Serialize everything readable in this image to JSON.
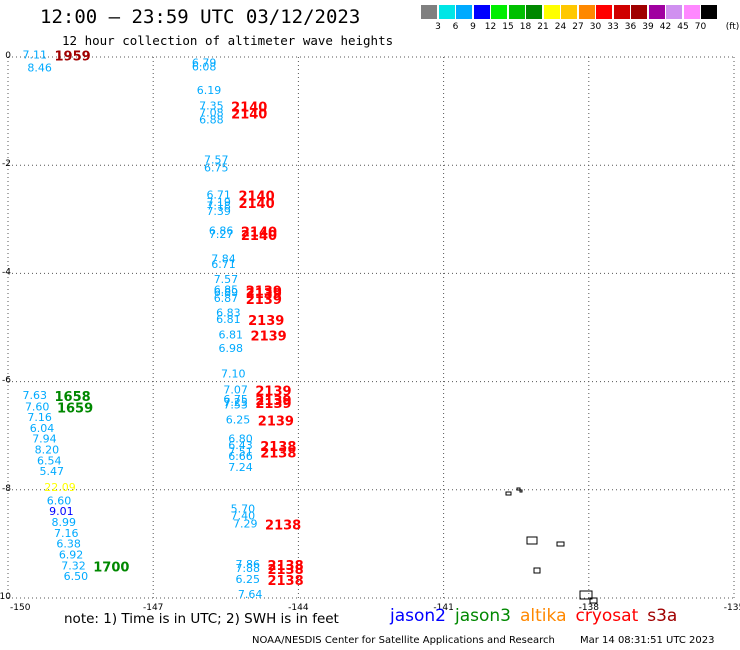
{
  "header": {
    "title": "12:00 — 23:59 UTC 03/12/2023",
    "subtitle": "12 hour collection of altimeter wave heights"
  },
  "legend": {
    "unit": "(ft)",
    "items": [
      {
        "label": "3",
        "color": "#808080"
      },
      {
        "label": "6",
        "color": "#00e6e6"
      },
      {
        "label": "9",
        "color": "#00aaff"
      },
      {
        "label": "12",
        "color": "#0000ff"
      },
      {
        "label": "15",
        "color": "#00ee00"
      },
      {
        "label": "18",
        "color": "#00c000"
      },
      {
        "label": "21",
        "color": "#008800"
      },
      {
        "label": "24",
        "color": "#ffff00"
      },
      {
        "label": "27",
        "color": "#ffc800"
      },
      {
        "label": "30",
        "color": "#ff8800"
      },
      {
        "label": "33",
        "color": "#ff0000"
      },
      {
        "label": "36",
        "color": "#d00000"
      },
      {
        "label": "39",
        "color": "#a00000"
      },
      {
        "label": "42",
        "color": "#a000a0"
      },
      {
        "label": "45",
        "color": "#d090f0"
      },
      {
        "label": "70",
        "color": "#ff88ff"
      },
      {
        "label": "",
        "color": "#000000"
      }
    ]
  },
  "axes": {
    "x_ticks": [
      "-150",
      "-147",
      "-144",
      "-141",
      "-138",
      "-135"
    ],
    "y_ticks": [
      "0",
      "-2",
      "-4",
      "-6",
      "-8",
      "-10"
    ]
  },
  "map_data": {
    "lon_range": [
      -150,
      -135
    ],
    "lat_range": [
      -10,
      0
    ],
    "observations": [
      {
        "lon": -149.7,
        "lat": -0.03,
        "value": "7.11",
        "color": "#00aaff",
        "time": "1959",
        "time_color": "#a00000"
      },
      {
        "lon": -149.6,
        "lat": -0.27,
        "value": "8.46",
        "color": "#00aaff"
      },
      {
        "lon": -146.2,
        "lat": -0.18,
        "value": "6.79",
        "color": "#00aaff"
      },
      {
        "lon": -146.2,
        "lat": -0.25,
        "value": "6.08",
        "color": "#00aaff"
      },
      {
        "lon": -146.1,
        "lat": -0.68,
        "value": "6.19",
        "color": "#00aaff"
      },
      {
        "lon": -146.05,
        "lat": -0.97,
        "value": "7.35",
        "color": "#00aaff",
        "time": "2140",
        "time_color": "#ff0000"
      },
      {
        "lon": -146.05,
        "lat": -1.1,
        "value": "7.08",
        "color": "#00aaff",
        "time": "2140",
        "time_color": "#ff0000"
      },
      {
        "lon": -146.05,
        "lat": -1.23,
        "value": "6.88",
        "color": "#00aaff"
      },
      {
        "lon": -145.95,
        "lat": -1.97,
        "value": "7.57",
        "color": "#00aaff"
      },
      {
        "lon": -145.95,
        "lat": -2.12,
        "value": "6.75",
        "color": "#00aaff"
      },
      {
        "lon": -145.9,
        "lat": -2.62,
        "value": "6.71",
        "color": "#00aaff",
        "time": "2140",
        "time_color": "#ff0000"
      },
      {
        "lon": -145.9,
        "lat": -2.75,
        "value": "7.19",
        "color": "#00aaff",
        "time": "2140",
        "time_color": "#ff0000"
      },
      {
        "lon": -145.9,
        "lat": -2.82,
        "value": "7.18",
        "color": "#00aaff"
      },
      {
        "lon": -145.9,
        "lat": -2.92,
        "value": "7.39",
        "color": "#00aaff"
      },
      {
        "lon": -145.85,
        "lat": -3.28,
        "value": "6.86",
        "color": "#00aaff",
        "time": "2140",
        "time_color": "#ff0000"
      },
      {
        "lon": -145.85,
        "lat": -3.35,
        "value": "7.27",
        "color": "#00aaff",
        "time": "2140",
        "time_color": "#ff0000"
      },
      {
        "lon": -145.8,
        "lat": -3.8,
        "value": "7.84",
        "color": "#00aaff"
      },
      {
        "lon": -145.8,
        "lat": -3.9,
        "value": "6.71",
        "color": "#00aaff"
      },
      {
        "lon": -145.75,
        "lat": -4.18,
        "value": "7.57",
        "color": "#00aaff"
      },
      {
        "lon": -145.75,
        "lat": -4.37,
        "value": "6.85",
        "color": "#00aaff",
        "time": "2139",
        "time_color": "#ff0000"
      },
      {
        "lon": -145.75,
        "lat": -4.42,
        "value": "6.89",
        "color": "#00aaff",
        "time": "2139",
        "time_color": "#ff0000"
      },
      {
        "lon": -145.75,
        "lat": -4.53,
        "value": "6.87",
        "color": "#00aaff",
        "time": "2139",
        "time_color": "#ff0000"
      },
      {
        "lon": -145.7,
        "lat": -4.8,
        "value": "6.83",
        "color": "#00aaff"
      },
      {
        "lon": -145.7,
        "lat": -4.92,
        "value": "6.81",
        "color": "#00aaff",
        "time": "2139",
        "time_color": "#ff0000"
      },
      {
        "lon": -145.65,
        "lat": -5.2,
        "value": "6.81",
        "color": "#00aaff",
        "time": "2139",
        "time_color": "#ff0000"
      },
      {
        "lon": -145.65,
        "lat": -5.45,
        "value": "6.98",
        "color": "#00aaff"
      },
      {
        "lon": -145.6,
        "lat": -5.92,
        "value": "7.10",
        "color": "#00aaff"
      },
      {
        "lon": -145.55,
        "lat": -6.22,
        "value": "7.07",
        "color": "#00aaff",
        "time": "2139",
        "time_color": "#ff0000"
      },
      {
        "lon": -145.55,
        "lat": -6.4,
        "value": "6.75",
        "color": "#00aaff",
        "time": "2139",
        "time_color": "#ff0000"
      },
      {
        "lon": -145.55,
        "lat": -6.45,
        "value": "7.25",
        "color": "#00aaff",
        "time": "2139",
        "time_color": "#ff0000"
      },
      {
        "lon": -145.55,
        "lat": -6.5,
        "value": "7.53",
        "color": "#00aaff"
      },
      {
        "lon": -145.5,
        "lat": -6.77,
        "value": "6.25",
        "color": "#00aaff",
        "time": "2139",
        "time_color": "#ff0000"
      },
      {
        "lon": -145.45,
        "lat": -7.13,
        "value": "6.80",
        "color": "#00aaff"
      },
      {
        "lon": -145.45,
        "lat": -7.25,
        "value": "6.43",
        "color": "#00aaff",
        "time": "2138",
        "time_color": "#ff0000"
      },
      {
        "lon": -145.45,
        "lat": -7.37,
        "value": "7.51",
        "color": "#00aaff",
        "time": "2138",
        "time_color": "#ff0000"
      },
      {
        "lon": -145.45,
        "lat": -7.45,
        "value": "6.66",
        "color": "#00aaff"
      },
      {
        "lon": -145.45,
        "lat": -7.65,
        "value": "7.24",
        "color": "#00aaff"
      },
      {
        "lon": -145.4,
        "lat": -8.42,
        "value": "5.70",
        "color": "#00aaff"
      },
      {
        "lon": -145.4,
        "lat": -8.55,
        "value": "7.40",
        "color": "#00aaff"
      },
      {
        "lon": -145.35,
        "lat": -8.7,
        "value": "7.29",
        "color": "#00aaff",
        "time": "2138",
        "time_color": "#ff0000"
      },
      {
        "lon": -145.3,
        "lat": -9.45,
        "value": "7.86",
        "color": "#00aaff",
        "time": "2138",
        "time_color": "#ff0000"
      },
      {
        "lon": -145.3,
        "lat": -9.52,
        "value": "7.88",
        "color": "#00aaff",
        "time": "2138",
        "time_color": "#ff0000"
      },
      {
        "lon": -145.3,
        "lat": -9.72,
        "value": "6.25",
        "color": "#00aaff",
        "time": "2138",
        "time_color": "#ff0000"
      },
      {
        "lon": -145.25,
        "lat": -10.0,
        "value": "7.64",
        "color": "#00aaff"
      },
      {
        "lon": -149.7,
        "lat": -6.32,
        "value": "7.63",
        "color": "#00aaff",
        "time": "1658",
        "time_color": "#008800"
      },
      {
        "lon": -149.65,
        "lat": -6.53,
        "value": "7.60",
        "color": "#00aaff",
        "time": "1659",
        "time_color": "#008800"
      },
      {
        "lon": -149.6,
        "lat": -6.73,
        "value": "7.16",
        "color": "#00aaff"
      },
      {
        "lon": -149.55,
        "lat": -6.93,
        "value": "6.04",
        "color": "#00aaff"
      },
      {
        "lon": -149.5,
        "lat": -7.13,
        "value": "7.94",
        "color": "#00aaff"
      },
      {
        "lon": -149.45,
        "lat": -7.33,
        "value": "8.20",
        "color": "#00aaff"
      },
      {
        "lon": -149.4,
        "lat": -7.53,
        "value": "6.54",
        "color": "#00aaff"
      },
      {
        "lon": -149.35,
        "lat": -7.73,
        "value": "5.47",
        "color": "#00aaff"
      },
      {
        "lon": -149.25,
        "lat": -8.02,
        "value": "22.09",
        "color": "#ffff00"
      },
      {
        "lon": -149.2,
        "lat": -8.27,
        "value": "6.60",
        "color": "#00aaff"
      },
      {
        "lon": -149.15,
        "lat": -8.47,
        "value": "9.01",
        "color": "#0000ff"
      },
      {
        "lon": -149.1,
        "lat": -8.67,
        "value": "8.99",
        "color": "#00aaff"
      },
      {
        "lon": -149.05,
        "lat": -8.87,
        "value": "7.16",
        "color": "#00aaff"
      },
      {
        "lon": -149.0,
        "lat": -9.07,
        "value": "6.38",
        "color": "#00aaff"
      },
      {
        "lon": -148.95,
        "lat": -9.27,
        "value": "6.92",
        "color": "#00aaff"
      },
      {
        "lon": -148.9,
        "lat": -9.47,
        "value": "7.32",
        "color": "#00aaff",
        "time": "1700",
        "time_color": "#008800"
      },
      {
        "lon": -148.85,
        "lat": -9.67,
        "value": "6.50",
        "color": "#00aaff"
      }
    ]
  },
  "footer": {
    "note": "note: 1) Time is in UTC; 2) SWH is in feet",
    "satellites": [
      {
        "name": "jason2",
        "color": "#0000ff"
      },
      {
        "name": "jason3",
        "color": "#008800"
      },
      {
        "name": "altika",
        "color": "#ff8800"
      },
      {
        "name": "cryosat",
        "color": "#ff0000"
      },
      {
        "name": "s3a",
        "color": "#a00000"
      }
    ],
    "credit": "NOAA/NESDIS Center for Satellite Applications and Research",
    "timestamp": "Mar 14 08:31:51 UTC 2023"
  }
}
